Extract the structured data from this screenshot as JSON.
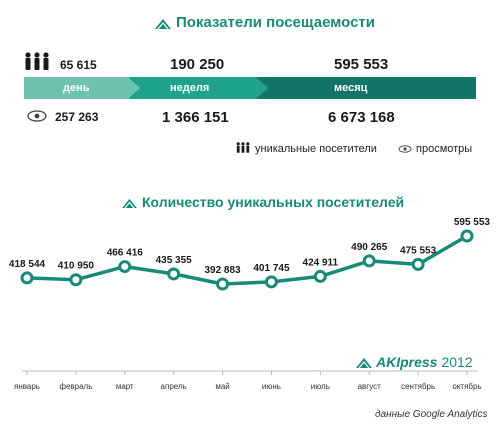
{
  "header": {
    "title": "Показатели посещаемости",
    "icon": "mountain-logo-icon"
  },
  "stats": {
    "unique_day": "65 615",
    "unique_week": "190 250",
    "unique_month": "595 553",
    "views_day": "257 263",
    "views_week": "1 366 151",
    "views_month": "6 673 168",
    "period_day": "день",
    "period_week": "неделя",
    "period_month": "месяц"
  },
  "legend": {
    "unique_label": "уникальные посетители",
    "views_label": "просмотры",
    "unique_icon": "people-icon",
    "views_icon": "eye-icon"
  },
  "colors": {
    "accent": "#1a8a78",
    "band_day": "#6dc3b0",
    "band_week": "#1fa38a",
    "band_month": "#137566",
    "line": "#1a8a78"
  },
  "chart_title": "Количество уникальных посетителей",
  "brand": {
    "name": "AKIpress",
    "year": "2012"
  },
  "footer": "данные Google Analytics",
  "chart_data": {
    "type": "line",
    "title": "Количество уникальных посетителей",
    "categories": [
      "январь",
      "февраль",
      "март",
      "апрель",
      "май",
      "июнь",
      "июль",
      "август",
      "сентябрь",
      "октябрь"
    ],
    "values": [
      418544,
      410950,
      466416,
      435355,
      392883,
      401745,
      424911,
      490265,
      475553,
      595553
    ],
    "value_labels": [
      "418 544",
      "410 950",
      "466 416",
      "435 355",
      "392 883",
      "401 745",
      "424 911",
      "490 265",
      "475 553",
      "595 553"
    ],
    "grid": false,
    "legend": "none"
  }
}
